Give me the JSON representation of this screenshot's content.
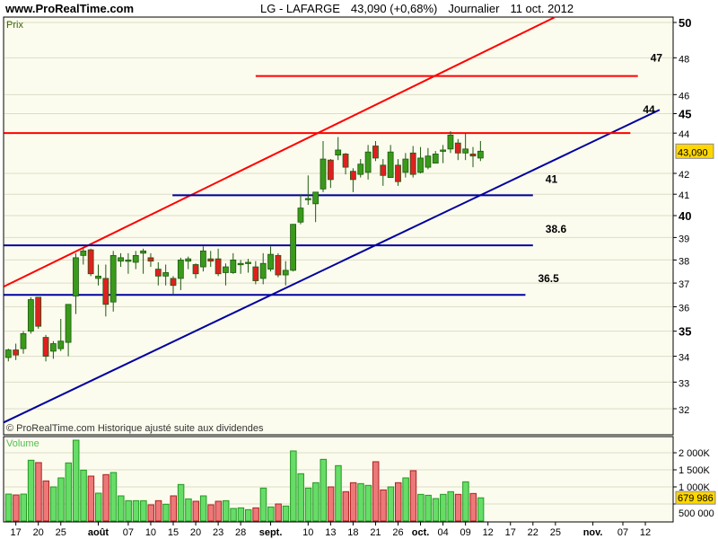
{
  "header": {
    "site": "www.ProRealTime.com",
    "symbol": "LG - LAFARGE",
    "price_change": "43,090 (+0,68%)",
    "period": "Journalier",
    "date": "11 oct. 2012"
  },
  "chart_data": [
    {
      "type": "candlestick",
      "title": "LG - LAFARGE",
      "panel_label": "Prix",
      "footer": "© ProRealTime.com  Historique ajusté suite aux dividendes",
      "y_scale": "log",
      "ylim": [
        31.3,
        50.4
      ],
      "grid": true,
      "colors": {
        "up": "#3a9a1a",
        "down": "#e02020",
        "background": "#fcfcee"
      },
      "y_ticks": [
        {
          "label": "50",
          "value": 50,
          "bold": true
        },
        {
          "label": "48",
          "value": 48
        },
        {
          "label": "46",
          "value": 46
        },
        {
          "label": "45",
          "value": 45,
          "bold": true
        },
        {
          "label": "44",
          "value": 44
        },
        {
          "label": "42",
          "value": 42
        },
        {
          "label": "41",
          "value": 41
        },
        {
          "label": "40",
          "value": 40,
          "bold": true
        },
        {
          "label": "39",
          "value": 39
        },
        {
          "label": "38",
          "value": 38
        },
        {
          "label": "37",
          "value": 37
        },
        {
          "label": "36",
          "value": 36
        },
        {
          "label": "35",
          "value": 35,
          "bold": true
        },
        {
          "label": "34",
          "value": 34
        },
        {
          "label": "33",
          "value": 33
        },
        {
          "label": "32",
          "value": 32
        }
      ],
      "last_price": {
        "label": "43,090",
        "value": 43.09,
        "color": "#ffd700"
      },
      "candles_ohlc": [
        [
          33.95,
          34.3,
          33.8,
          34.25
        ],
        [
          34.25,
          34.5,
          33.85,
          34.05
        ],
        [
          34.3,
          35.0,
          34.1,
          34.9
        ],
        [
          35.0,
          36.4,
          34.9,
          36.3
        ],
        [
          36.4,
          36.4,
          35.1,
          35.2
        ],
        [
          34.75,
          34.85,
          33.8,
          34.0
        ],
        [
          34.2,
          34.6,
          33.9,
          34.5
        ],
        [
          34.3,
          35.5,
          34.2,
          34.6
        ],
        [
          34.55,
          36.1,
          34.0,
          36.1
        ],
        [
          36.45,
          38.3,
          35.7,
          38.1
        ],
        [
          38.2,
          38.5,
          37.8,
          38.4
        ],
        [
          38.45,
          38.5,
          37.3,
          37.4
        ],
        [
          37.2,
          37.8,
          36.9,
          37.3
        ],
        [
          37.2,
          37.8,
          35.6,
          36.1
        ],
        [
          36.2,
          38.4,
          35.8,
          38.2
        ],
        [
          37.95,
          38.3,
          37.7,
          38.1
        ],
        [
          37.95,
          38.3,
          37.4,
          38.0
        ],
        [
          37.9,
          38.4,
          37.6,
          38.2
        ],
        [
          38.3,
          38.5,
          37.4,
          38.4
        ],
        [
          38.1,
          38.3,
          37.7,
          37.95
        ],
        [
          37.6,
          37.9,
          36.9,
          37.3
        ],
        [
          37.3,
          37.8,
          36.9,
          37.45
        ],
        [
          37.2,
          37.3,
          36.5,
          36.9
        ],
        [
          37.2,
          38.1,
          36.7,
          38.0
        ],
        [
          37.95,
          38.15,
          37.6,
          38.05
        ],
        [
          37.8,
          37.85,
          37.2,
          37.4
        ],
        [
          37.7,
          38.6,
          37.5,
          38.4
        ],
        [
          38.05,
          38.4,
          37.7,
          37.95
        ],
        [
          38.05,
          38.5,
          37.3,
          37.4
        ],
        [
          37.45,
          37.85,
          36.9,
          37.7
        ],
        [
          37.45,
          38.3,
          37.4,
          38.0
        ],
        [
          37.8,
          38.0,
          37.4,
          37.85
        ],
        [
          37.85,
          38.05,
          37.45,
          37.9
        ],
        [
          37.7,
          37.95,
          36.95,
          37.1
        ],
        [
          37.2,
          38.3,
          36.95,
          37.85
        ],
        [
          37.6,
          38.6,
          37.5,
          38.25
        ],
        [
          38.2,
          38.3,
          37.25,
          37.35
        ],
        [
          37.35,
          37.95,
          36.9,
          37.55
        ],
        [
          37.55,
          39.6,
          37.5,
          39.6
        ],
        [
          39.7,
          41.0,
          39.6,
          40.35
        ],
        [
          40.75,
          41.9,
          40.5,
          40.8
        ],
        [
          40.55,
          41.1,
          39.7,
          41.1
        ],
        [
          41.25,
          43.6,
          41.1,
          42.7
        ],
        [
          42.65,
          42.7,
          41.3,
          41.7
        ],
        [
          42.9,
          43.8,
          42.65,
          43.15
        ],
        [
          42.95,
          43.0,
          41.95,
          42.3
        ],
        [
          42.1,
          42.25,
          41.1,
          41.7
        ],
        [
          41.95,
          42.7,
          41.8,
          42.45
        ],
        [
          42.05,
          43.4,
          41.7,
          43.05
        ],
        [
          43.35,
          43.6,
          42.6,
          42.75
        ],
        [
          42.4,
          42.7,
          41.4,
          41.9
        ],
        [
          41.8,
          43.4,
          41.8,
          43.05
        ],
        [
          42.4,
          42.7,
          41.4,
          41.6
        ],
        [
          42.05,
          43.0,
          41.8,
          42.7
        ],
        [
          43.0,
          43.35,
          41.8,
          41.95
        ],
        [
          42.05,
          43.3,
          42.0,
          42.75
        ],
        [
          42.3,
          43.25,
          42.2,
          42.85
        ],
        [
          42.5,
          43.1,
          42.5,
          42.95
        ],
        [
          43.1,
          43.4,
          42.5,
          43.15
        ],
        [
          43.2,
          44.1,
          43.0,
          43.9
        ],
        [
          43.5,
          43.7,
          42.65,
          43.0
        ],
        [
          43.0,
          44.0,
          42.65,
          43.2
        ],
        [
          42.95,
          43.3,
          42.3,
          42.85
        ],
        [
          42.75,
          43.6,
          42.6,
          43.09
        ]
      ],
      "trend_lines": [
        {
          "color": "#ff0000",
          "from": [
            -0.6,
            36.85
          ],
          "to": [
            72.9,
            50.3
          ]
        },
        {
          "color": "#0000a0",
          "from": [
            -0.6,
            31.5
          ],
          "to": [
            86.9,
            45.2
          ]
        }
      ],
      "horizontal_lines": [
        {
          "label": "47",
          "value": 47.0,
          "from": 33,
          "to": 84,
          "color": "#ff0000"
        },
        {
          "label": "44",
          "value": 44.0,
          "from": -0.6,
          "to": 83,
          "color": "#ff0000"
        },
        {
          "label": "41",
          "value": 40.95,
          "from": 21.9,
          "to": 70,
          "color": "#0000a0"
        },
        {
          "label": "38.6",
          "value": 38.65,
          "from": -0.6,
          "to": 70,
          "color": "#0000a0"
        },
        {
          "label": "36.5",
          "value": 36.5,
          "from": -0.6,
          "to": 69,
          "color": "#0000a0"
        }
      ]
    },
    {
      "type": "bar",
      "panel_label": "Volume",
      "ylim": [
        0,
        2500000
      ],
      "y_ticks": [
        {
          "label": "2 000K",
          "value": 2000000
        },
        {
          "label": "1 500K",
          "value": 1500000
        },
        {
          "label": "1 000K",
          "value": 1000000
        },
        {
          "label": "500 000",
          "value": 500000
        }
      ],
      "last_volume": {
        "label": "679 986",
        "value": 679986,
        "color": "#ffd700"
      },
      "values_k": [
        789,
        763,
        789,
        1781,
        1711,
        1175,
        1000,
        1263,
        1702,
        2368,
        1491,
        1316,
        816,
        1360,
        1421,
        737,
        596,
        596,
        596,
        474,
        596,
        491,
        737,
        1070,
        649,
        579,
        737,
        474,
        579,
        596,
        368,
        386,
        333,
        386,
        965,
        412,
        500,
        439,
        2053,
        1386,
        965,
        1123,
        1807,
        1000,
        1623,
        860,
        1123,
        1096,
        1044,
        1737,
        912,
        1000,
        1123,
        1263,
        1474,
        781,
        754,
        658,
        781,
        860,
        781,
        1149,
        807,
        680
      ]
    }
  ],
  "x_axis": {
    "labels": [
      {
        "label": "17",
        "day": 1
      },
      {
        "label": "20",
        "day": 4
      },
      {
        "label": "25",
        "day": 7
      },
      {
        "label": "août",
        "day": 12,
        "bold": true
      },
      {
        "label": "07",
        "day": 16
      },
      {
        "label": "10",
        "day": 19
      },
      {
        "label": "15",
        "day": 22
      },
      {
        "label": "20",
        "day": 25
      },
      {
        "label": "23",
        "day": 28
      },
      {
        "label": "28",
        "day": 31
      },
      {
        "label": "sept.",
        "day": 35,
        "bold": true
      },
      {
        "label": "10",
        "day": 40
      },
      {
        "label": "13",
        "day": 43
      },
      {
        "label": "18",
        "day": 46
      },
      {
        "label": "21",
        "day": 49
      },
      {
        "label": "26",
        "day": 52
      },
      {
        "label": "oct.",
        "day": 55,
        "bold": true
      },
      {
        "label": "04",
        "day": 58
      },
      {
        "label": "09",
        "day": 61
      },
      {
        "label": "12",
        "day": 64
      },
      {
        "label": "17",
        "day": 67
      },
      {
        "label": "22",
        "day": 70
      },
      {
        "label": "25",
        "day": 73
      },
      {
        "label": "nov.",
        "day": 78,
        "bold": true
      },
      {
        "label": "07",
        "day": 82
      },
      {
        "label": "12",
        "day": 85
      }
    ]
  }
}
